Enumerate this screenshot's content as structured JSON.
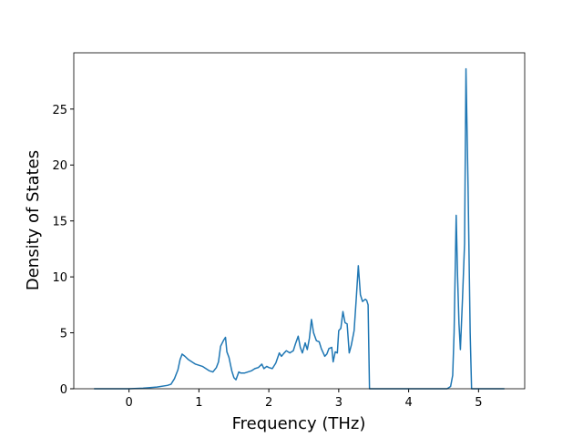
{
  "chart_data": {
    "type": "line",
    "xlabel": "Frequency (THz)",
    "ylabel": "Density of States",
    "x": [
      -0.5,
      0,
      0.2,
      0.4,
      0.55,
      0.6,
      0.65,
      0.7,
      0.73,
      0.76,
      0.8,
      0.85,
      0.9,
      0.95,
      1.0,
      1.05,
      1.1,
      1.15,
      1.2,
      1.25,
      1.28,
      1.31,
      1.35,
      1.38,
      1.4,
      1.43,
      1.47,
      1.5,
      1.53,
      1.57,
      1.6,
      1.65,
      1.7,
      1.75,
      1.8,
      1.85,
      1.9,
      1.93,
      1.97,
      2.0,
      2.05,
      2.1,
      2.15,
      2.18,
      2.22,
      2.25,
      2.3,
      2.35,
      2.38,
      2.42,
      2.45,
      2.48,
      2.52,
      2.55,
      2.58,
      2.61,
      2.64,
      2.68,
      2.72,
      2.75,
      2.8,
      2.83,
      2.86,
      2.9,
      2.92,
      2.95,
      2.98,
      3.0,
      3.03,
      3.06,
      3.09,
      3.12,
      3.15,
      3.18,
      3.22,
      3.25,
      3.28,
      3.31,
      3.34,
      3.38,
      3.4,
      3.42,
      3.44,
      4.0,
      4.55,
      4.6,
      4.63,
      4.65,
      4.68,
      4.7,
      4.72,
      4.74,
      4.77,
      4.8,
      4.82,
      4.85,
      4.88,
      4.9,
      5.37
    ],
    "series": [
      {
        "color": "#1f77b4",
        "values": [
          0,
          0,
          0.05,
          0.15,
          0.3,
          0.4,
          0.9,
          1.7,
          2.6,
          3.1,
          2.9,
          2.6,
          2.4,
          2.2,
          2.1,
          2.0,
          1.8,
          1.6,
          1.5,
          1.9,
          2.4,
          3.8,
          4.3,
          4.6,
          3.3,
          2.8,
          1.6,
          1.0,
          0.8,
          1.5,
          1.4,
          1.4,
          1.5,
          1.6,
          1.8,
          1.9,
          2.2,
          1.8,
          2.0,
          1.9,
          1.8,
          2.3,
          3.2,
          2.9,
          3.2,
          3.4,
          3.2,
          3.4,
          4.0,
          4.7,
          3.7,
          3.2,
          4.1,
          3.5,
          4.5,
          6.2,
          5.0,
          4.3,
          4.2,
          3.6,
          2.9,
          3.1,
          3.6,
          3.7,
          2.4,
          3.3,
          3.2,
          5.2,
          5.4,
          6.9,
          5.9,
          5.8,
          3.2,
          3.9,
          5.2,
          8.0,
          11.0,
          8.4,
          7.8,
          8.0,
          7.9,
          7.5,
          0,
          0,
          0,
          0.2,
          1.2,
          5.0,
          15.5,
          10,
          5.8,
          3.5,
          8,
          13,
          28.6,
          18,
          5,
          0,
          0
        ]
      }
    ],
    "xlim": [
      -0.79,
      5.66
    ],
    "xticks": [
      0,
      1,
      2,
      3,
      4,
      5
    ],
    "ylim": [
      0,
      30.03
    ],
    "yticks": [
      0,
      5,
      10,
      15,
      20,
      25
    ]
  }
}
